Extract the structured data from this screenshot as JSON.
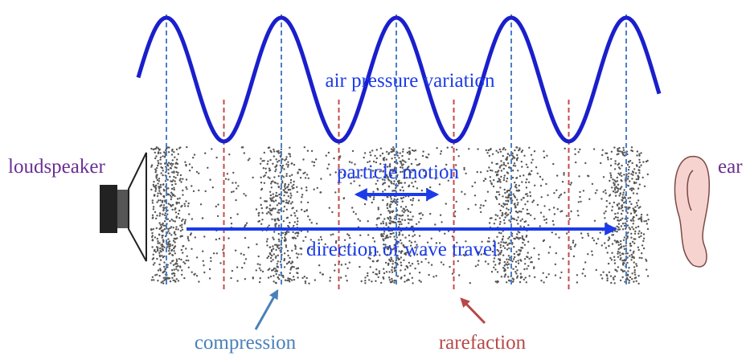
{
  "labels": {
    "source": "loudspeaker",
    "receiver": "ear",
    "wave": "air pressure variation",
    "motion": "particle motion",
    "direction": "direction of wave travel",
    "compression": "compression",
    "rarefaction": "rarefaction"
  }
}
